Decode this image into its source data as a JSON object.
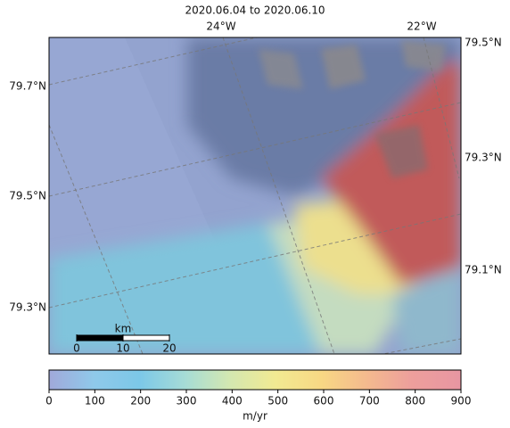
{
  "title": "2020.06.04 to 2020.06.10",
  "map": {
    "lon_labels": [
      "24°W",
      "22°W"
    ],
    "lat_labels_left": [
      "79.7°N",
      "79.5°N",
      "79.3°N"
    ],
    "lat_labels_right": [
      "79.5°N",
      "79.3°N",
      "79.1°N"
    ],
    "scale_bar": {
      "unit": "km",
      "lim": [
        0,
        20
      ],
      "ticks": [
        0,
        10,
        20
      ]
    }
  },
  "colorbar": {
    "label": "m/yr",
    "lim": [
      0,
      900
    ],
    "ticks": [
      0,
      100,
      200,
      300,
      400,
      500,
      600,
      700,
      800,
      900
    ]
  }
}
